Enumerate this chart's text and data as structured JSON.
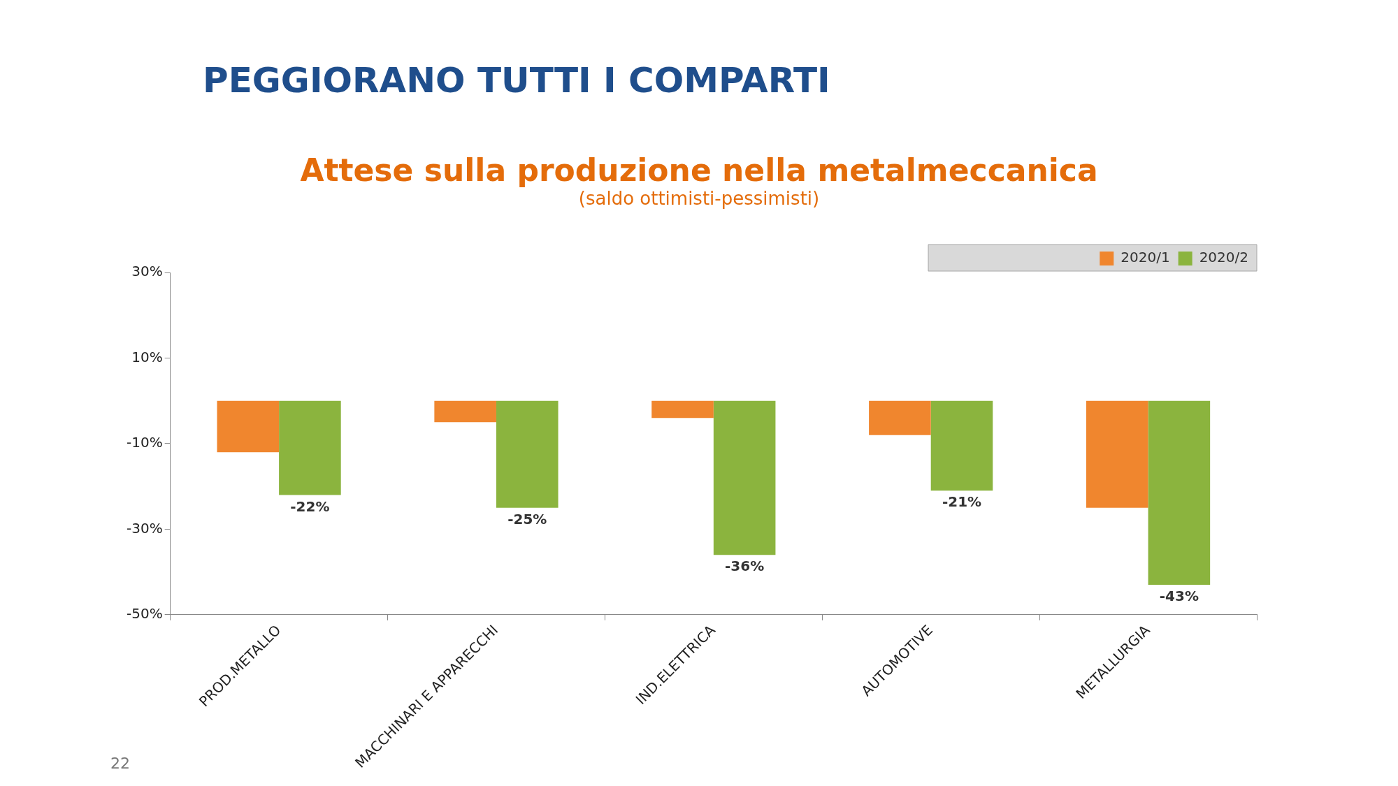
{
  "chart_data": {
    "type": "bar",
    "title": "Attese sulla produzione nella metalmeccanica",
    "subtitle": "(saldo ottimisti-pessimisti)",
    "annotations": [
      "PEGGIORANO TUTTI I COMPARTI",
      "22"
    ],
    "categories": [
      "PROD.METALLO",
      "MACCHINARI E APPARECCHI",
      "IND.ELETTRICA",
      "AUTOMOTIVE",
      "METALLURGIA"
    ],
    "series": [
      {
        "name": "2020/1",
        "color": "#f0862e",
        "values": [
          -12,
          -5,
          -4,
          -8,
          -25
        ]
      },
      {
        "name": "2020/2",
        "color": "#8bb43e",
        "values": [
          -22,
          -25,
          -36,
          -21,
          -43
        ],
        "value_labels": [
          "-22%",
          "-25%",
          "-36%",
          "-21%",
          "-43%"
        ]
      }
    ],
    "ylim": [
      -50,
      30
    ],
    "yticks": [
      {
        "value": 30,
        "label": "30%"
      },
      {
        "value": 10,
        "label": "10%"
      },
      {
        "value": -10,
        "label": "-10%"
      },
      {
        "value": -30,
        "label": "-30%"
      },
      {
        "value": -50,
        "label": "-50%"
      }
    ],
    "grid": false,
    "legend": "top right"
  }
}
